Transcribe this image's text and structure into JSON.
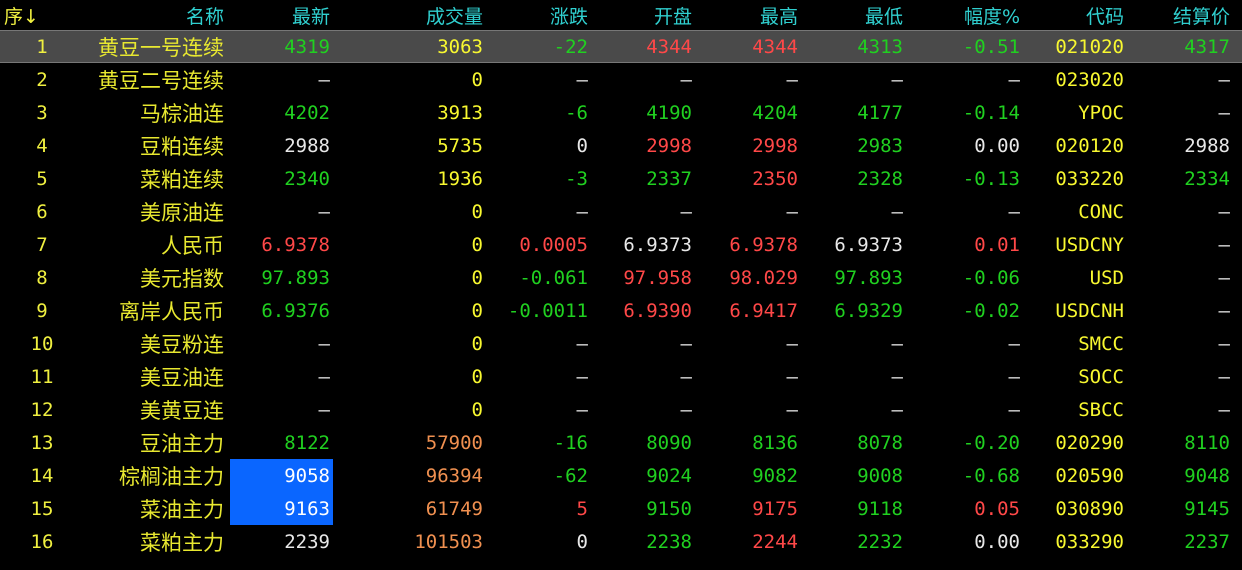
{
  "header": {
    "columns": [
      "序↓",
      "名称",
      "最新",
      "成交量",
      "涨跌",
      "开盘",
      "最高",
      "最低",
      "幅度%",
      "代码",
      "结算价"
    ]
  },
  "colors": {
    "green": "#20d020",
    "red": "#ff4848",
    "white": "#e8e8e8",
    "yellow": "#f8f830",
    "orange": "#f09050",
    "header": "#30d0d0",
    "selection": "#0a66ff",
    "selected_row": "#4a4a4a"
  },
  "selected_row": 1,
  "highlighted_cells": [
    {
      "row": 14,
      "column": "最新"
    },
    {
      "row": 15,
      "column": "最新"
    }
  ],
  "rows": [
    {
      "idx": "1",
      "name": "黄豆一号连续",
      "cells": [
        [
          "4319",
          "green"
        ],
        [
          "3063",
          "yellow"
        ],
        [
          "-22",
          "green"
        ],
        [
          "4344",
          "red"
        ],
        [
          "4344",
          "red"
        ],
        [
          "4313",
          "green"
        ],
        [
          "-0.51",
          "green"
        ],
        [
          "021020",
          "yellow"
        ],
        [
          "4317",
          "green"
        ]
      ]
    },
    {
      "idx": "2",
      "name": "黄豆二号连续",
      "cells": [
        [
          "—",
          "white"
        ],
        [
          "0",
          "yellow"
        ],
        [
          "—",
          "white"
        ],
        [
          "—",
          "white"
        ],
        [
          "—",
          "white"
        ],
        [
          "—",
          "white"
        ],
        [
          "—",
          "white"
        ],
        [
          "023020",
          "yellow"
        ],
        [
          "—",
          "white"
        ]
      ]
    },
    {
      "idx": "3",
      "name": "马棕油连",
      "cells": [
        [
          "4202",
          "green"
        ],
        [
          "3913",
          "yellow"
        ],
        [
          "-6",
          "green"
        ],
        [
          "4190",
          "green"
        ],
        [
          "4204",
          "green"
        ],
        [
          "4177",
          "green"
        ],
        [
          "-0.14",
          "green"
        ],
        [
          "YPOC",
          "yellow"
        ],
        [
          "—",
          "white"
        ]
      ]
    },
    {
      "idx": "4",
      "name": "豆粕连续",
      "cells": [
        [
          "2988",
          "white"
        ],
        [
          "5735",
          "yellow"
        ],
        [
          "0",
          "white"
        ],
        [
          "2998",
          "red"
        ],
        [
          "2998",
          "red"
        ],
        [
          "2983",
          "green"
        ],
        [
          "0.00",
          "white"
        ],
        [
          "020120",
          "yellow"
        ],
        [
          "2988",
          "white"
        ]
      ]
    },
    {
      "idx": "5",
      "name": "菜粕连续",
      "cells": [
        [
          "2340",
          "green"
        ],
        [
          "1936",
          "yellow"
        ],
        [
          "-3",
          "green"
        ],
        [
          "2337",
          "green"
        ],
        [
          "2350",
          "red"
        ],
        [
          "2328",
          "green"
        ],
        [
          "-0.13",
          "green"
        ],
        [
          "033220",
          "yellow"
        ],
        [
          "2334",
          "green"
        ]
      ]
    },
    {
      "idx": "6",
      "name": "美原油连",
      "cells": [
        [
          "—",
          "white"
        ],
        [
          "0",
          "yellow"
        ],
        [
          "—",
          "white"
        ],
        [
          "—",
          "white"
        ],
        [
          "—",
          "white"
        ],
        [
          "—",
          "white"
        ],
        [
          "—",
          "white"
        ],
        [
          "CONC",
          "yellow"
        ],
        [
          "—",
          "white"
        ]
      ]
    },
    {
      "idx": "7",
      "name": "人民币",
      "cells": [
        [
          "6.9378",
          "red"
        ],
        [
          "0",
          "yellow"
        ],
        [
          "0.0005",
          "red"
        ],
        [
          "6.9373",
          "white"
        ],
        [
          "6.9378",
          "red"
        ],
        [
          "6.9373",
          "white"
        ],
        [
          "0.01",
          "red"
        ],
        [
          "USDCNY",
          "yellow"
        ],
        [
          "—",
          "white"
        ]
      ]
    },
    {
      "idx": "8",
      "name": "美元指数",
      "cells": [
        [
          "97.893",
          "green"
        ],
        [
          "0",
          "yellow"
        ],
        [
          "-0.061",
          "green"
        ],
        [
          "97.958",
          "red"
        ],
        [
          "98.029",
          "red"
        ],
        [
          "97.893",
          "green"
        ],
        [
          "-0.06",
          "green"
        ],
        [
          "USD",
          "yellow"
        ],
        [
          "—",
          "white"
        ]
      ]
    },
    {
      "idx": "9",
      "name": "离岸人民币",
      "cells": [
        [
          "6.9376",
          "green"
        ],
        [
          "0",
          "yellow"
        ],
        [
          "-0.0011",
          "green"
        ],
        [
          "6.9390",
          "red"
        ],
        [
          "6.9417",
          "red"
        ],
        [
          "6.9329",
          "green"
        ],
        [
          "-0.02",
          "green"
        ],
        [
          "USDCNH",
          "yellow"
        ],
        [
          "—",
          "white"
        ]
      ]
    },
    {
      "idx": "10",
      "name": "美豆粉连",
      "cells": [
        [
          "—",
          "white"
        ],
        [
          "0",
          "yellow"
        ],
        [
          "—",
          "white"
        ],
        [
          "—",
          "white"
        ],
        [
          "—",
          "white"
        ],
        [
          "—",
          "white"
        ],
        [
          "—",
          "white"
        ],
        [
          "SMCC",
          "yellow"
        ],
        [
          "—",
          "white"
        ]
      ]
    },
    {
      "idx": "11",
      "name": "美豆油连",
      "cells": [
        [
          "—",
          "white"
        ],
        [
          "0",
          "yellow"
        ],
        [
          "—",
          "white"
        ],
        [
          "—",
          "white"
        ],
        [
          "—",
          "white"
        ],
        [
          "—",
          "white"
        ],
        [
          "—",
          "white"
        ],
        [
          "SOCC",
          "yellow"
        ],
        [
          "—",
          "white"
        ]
      ]
    },
    {
      "idx": "12",
      "name": "美黄豆连",
      "cells": [
        [
          "—",
          "white"
        ],
        [
          "0",
          "yellow"
        ],
        [
          "—",
          "white"
        ],
        [
          "—",
          "white"
        ],
        [
          "—",
          "white"
        ],
        [
          "—",
          "white"
        ],
        [
          "—",
          "white"
        ],
        [
          "SBCC",
          "yellow"
        ],
        [
          "—",
          "white"
        ]
      ]
    },
    {
      "idx": "13",
      "name": "豆油主力",
      "cells": [
        [
          "8122",
          "green"
        ],
        [
          "57900",
          "orange"
        ],
        [
          "-16",
          "green"
        ],
        [
          "8090",
          "green"
        ],
        [
          "8136",
          "green"
        ],
        [
          "8078",
          "green"
        ],
        [
          "-0.20",
          "green"
        ],
        [
          "020290",
          "yellow"
        ],
        [
          "8110",
          "green"
        ]
      ]
    },
    {
      "idx": "14",
      "name": "棕榈油主力",
      "cells": [
        [
          "9058",
          "white"
        ],
        [
          "96394",
          "orange"
        ],
        [
          "-62",
          "green"
        ],
        [
          "9024",
          "green"
        ],
        [
          "9082",
          "green"
        ],
        [
          "9008",
          "green"
        ],
        [
          "-0.68",
          "green"
        ],
        [
          "020590",
          "yellow"
        ],
        [
          "9048",
          "green"
        ]
      ]
    },
    {
      "idx": "15",
      "name": "菜油主力",
      "cells": [
        [
          "9163",
          "white"
        ],
        [
          "61749",
          "orange"
        ],
        [
          "5",
          "red"
        ],
        [
          "9150",
          "green"
        ],
        [
          "9175",
          "red"
        ],
        [
          "9118",
          "green"
        ],
        [
          "0.05",
          "red"
        ],
        [
          "030890",
          "yellow"
        ],
        [
          "9145",
          "green"
        ]
      ]
    },
    {
      "idx": "16",
      "name": "菜粕主力",
      "cells": [
        [
          "2239",
          "white"
        ],
        [
          "101503",
          "orange"
        ],
        [
          "0",
          "white"
        ],
        [
          "2238",
          "green"
        ],
        [
          "2244",
          "red"
        ],
        [
          "2232",
          "green"
        ],
        [
          "0.00",
          "white"
        ],
        [
          "033290",
          "yellow"
        ],
        [
          "2237",
          "green"
        ]
      ]
    }
  ]
}
